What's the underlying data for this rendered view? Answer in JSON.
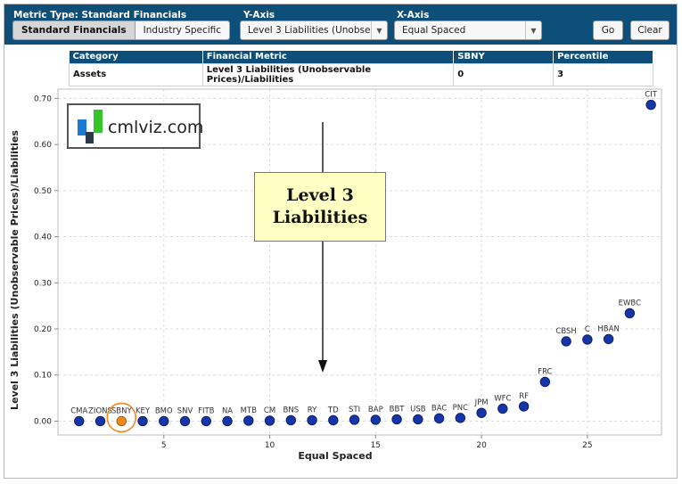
{
  "header": {
    "metric_type_label": "Metric Type: Standard Financials",
    "y_axis_label": "Y-Axis",
    "x_axis_label": "X-Axis",
    "segments": [
      {
        "label": "Standard Financials",
        "selected": true
      },
      {
        "label": "Industry Specific",
        "selected": false
      }
    ],
    "y_axis_select": "Level 3 Liabilities (Unobser",
    "x_axis_select": "Equal Spaced",
    "go_label": "Go",
    "clear_label": "Clear"
  },
  "table": {
    "columns": [
      "Category",
      "Financial Metric",
      "SBNY",
      "Percentile"
    ],
    "rows": [
      [
        "Assets",
        "Level 3 Liabilities (Unobservable Prices)/Liabilities",
        "0",
        "3"
      ]
    ]
  },
  "logo": {
    "text": "cmlviz.com"
  },
  "callout": {
    "line1": "Level 3",
    "line2": "Liabilities"
  },
  "colors": {
    "header_bg": "#0e4f79",
    "point": "#1636a8",
    "highlight": "#f08a1e",
    "callout_bg": "#ffffc4"
  },
  "chart_data": {
    "type": "scatter",
    "xlabel": "Equal Spaced",
    "ylabel": "Level 3 Liabilities (Unobservable Prices)/Liabilities",
    "xlim": [
      0,
      28.5
    ],
    "ylim": [
      -0.03,
      0.72
    ],
    "x_ticks": [
      5,
      10,
      15,
      20,
      25
    ],
    "y_ticks": [
      0.0,
      0.1,
      0.2,
      0.3,
      0.4,
      0.5,
      0.6,
      0.7
    ],
    "y_tick_labels": [
      "0.00",
      "0.10",
      "0.20",
      "0.30",
      "0.40",
      "0.50",
      "0.60",
      "0.70"
    ],
    "grid": true,
    "highlight": "SBNY",
    "points": [
      {
        "label": "CMA",
        "x": 1,
        "y": 0.0
      },
      {
        "label": "ZIONS",
        "x": 2,
        "y": 0.0
      },
      {
        "label": "SBNY",
        "x": 3,
        "y": 0.0
      },
      {
        "label": "KEY",
        "x": 4,
        "y": 0.0
      },
      {
        "label": "BMO",
        "x": 5,
        "y": 0.0
      },
      {
        "label": "SNV",
        "x": 6,
        "y": 0.0
      },
      {
        "label": "FITB",
        "x": 7,
        "y": 0.0
      },
      {
        "label": "NA",
        "x": 8,
        "y": 0.0
      },
      {
        "label": "MTB",
        "x": 9,
        "y": 0.001
      },
      {
        "label": "CM",
        "x": 10,
        "y": 0.001
      },
      {
        "label": "BNS",
        "x": 11,
        "y": 0.002
      },
      {
        "label": "RY",
        "x": 12,
        "y": 0.002
      },
      {
        "label": "TD",
        "x": 13,
        "y": 0.002
      },
      {
        "label": "STI",
        "x": 14,
        "y": 0.003
      },
      {
        "label": "BAP",
        "x": 15,
        "y": 0.003
      },
      {
        "label": "BBT",
        "x": 16,
        "y": 0.004
      },
      {
        "label": "USB",
        "x": 17,
        "y": 0.004
      },
      {
        "label": "BAC",
        "x": 18,
        "y": 0.006
      },
      {
        "label": "PNC",
        "x": 19,
        "y": 0.007
      },
      {
        "label": "JPM",
        "x": 20,
        "y": 0.018
      },
      {
        "label": "WFC",
        "x": 21,
        "y": 0.027
      },
      {
        "label": "RF",
        "x": 22,
        "y": 0.032
      },
      {
        "label": "FRC",
        "x": 23,
        "y": 0.085
      },
      {
        "label": "CBSH",
        "x": 24,
        "y": 0.173
      },
      {
        "label": "C",
        "x": 25,
        "y": 0.177
      },
      {
        "label": "HBAN",
        "x": 26,
        "y": 0.178
      },
      {
        "label": "EWBC",
        "x": 27,
        "y": 0.234
      },
      {
        "label": "CIT",
        "x": 28,
        "y": 0.686
      }
    ]
  }
}
